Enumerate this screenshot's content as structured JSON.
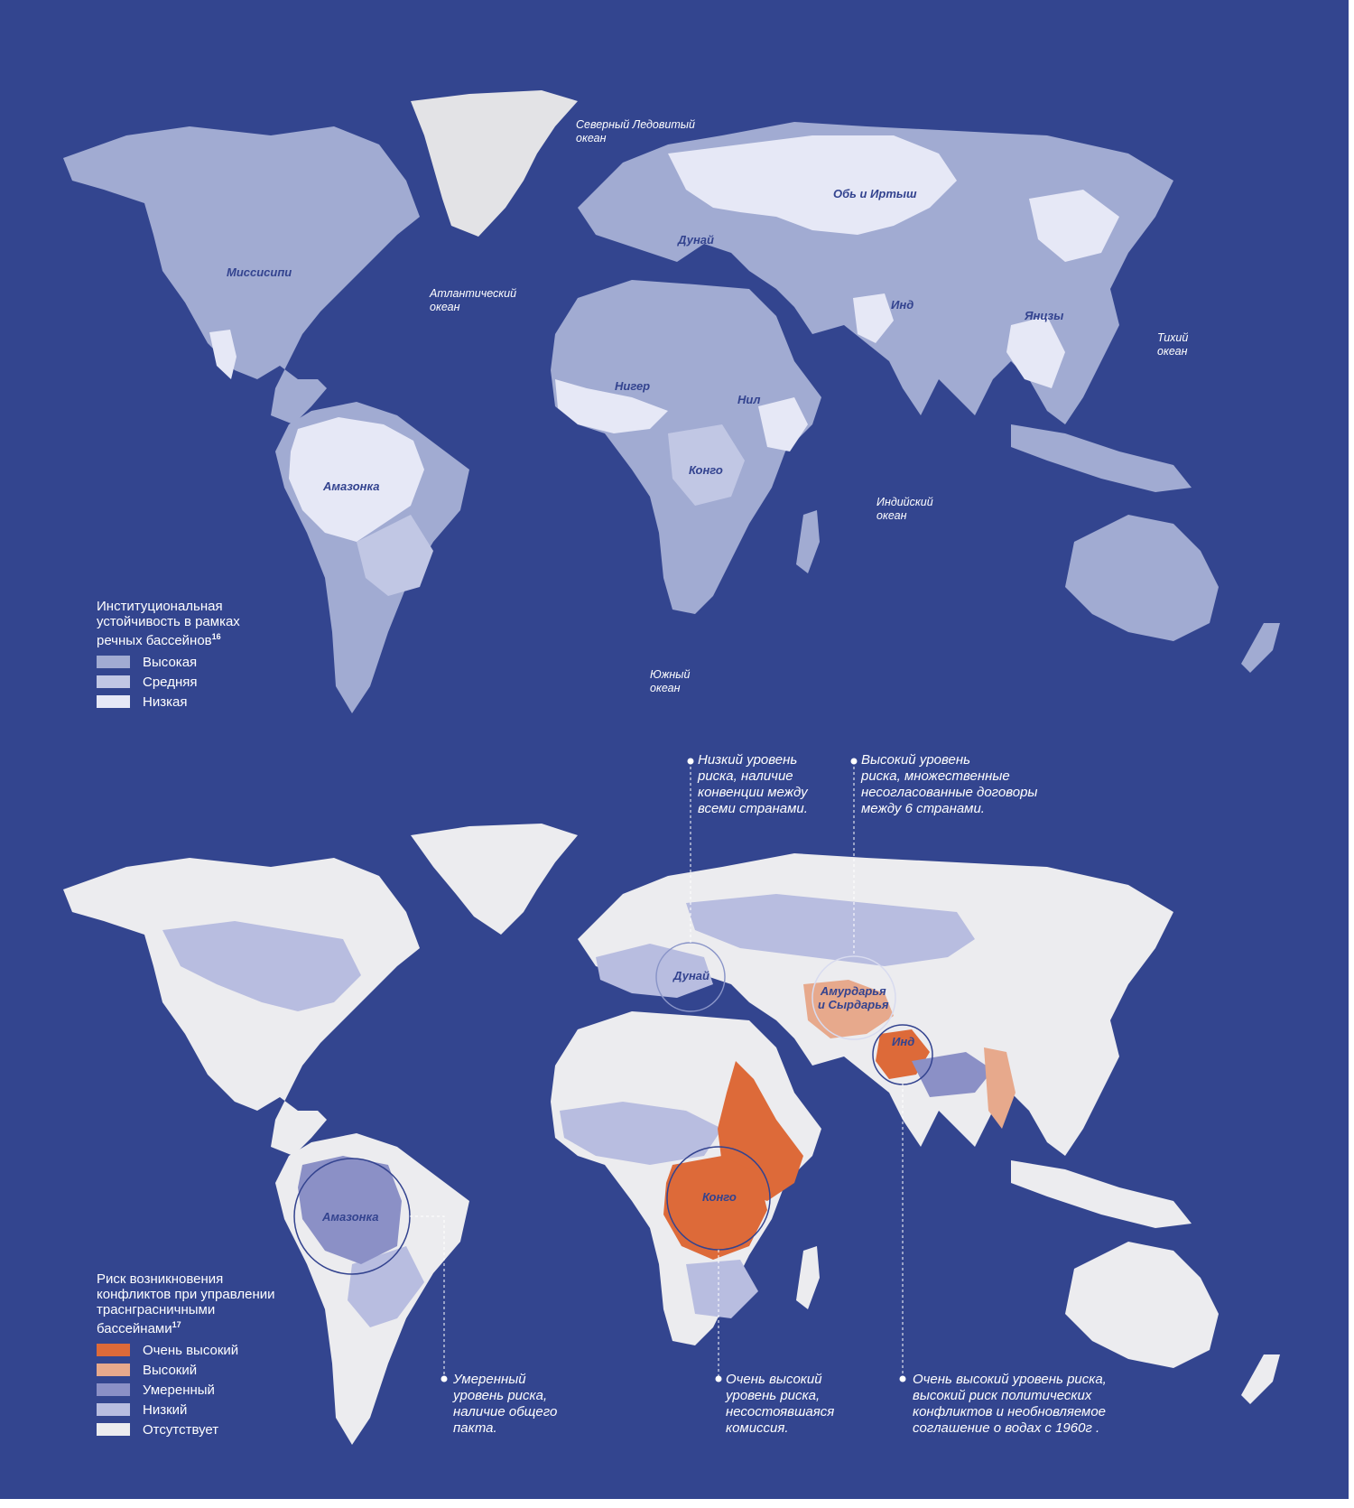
{
  "colors": {
    "background": "#33458f",
    "frame": "#d9dce8",
    "greenland": "#e3e3e6",
    "inst_high": "#a1abd2",
    "inst_mid": "#c1c7e4",
    "inst_low": "#e6e8f6",
    "risk_very_high": "#dd6a39",
    "risk_high": "#e7a98c",
    "risk_moderate": "#8b90c6",
    "risk_low": "#b8bde0",
    "risk_none": "#ececef",
    "label": "#33438f"
  },
  "map_top": {
    "rivers": [
      "Миссисипи",
      "Амазонка",
      "Нигер",
      "Нил",
      "Конго",
      "Дунай",
      "Обь и Иртыш",
      "Инд",
      "Янцзы"
    ],
    "oceans": [
      "Северный Ледовитый\nокеан",
      "Атлантический\nокеан",
      "Тихий\nокеан",
      "Индийский\nокеан",
      "Южный\nокеан"
    ],
    "legend": {
      "title": "Институциональная\nустойчивость в рамках\nречных бассейнов",
      "footnote": "16",
      "items": [
        {
          "label": "Высокая",
          "color": "#a1abd2"
        },
        {
          "label": "Средняя",
          "color": "#c1c7e4"
        },
        {
          "label": "Низкая",
          "color": "#e6e8f6"
        }
      ]
    }
  },
  "map_bottom": {
    "basins": [
      "Дунай",
      "Амурдарья\nи Сырдарья",
      "Инд",
      "Конго",
      "Амазонка"
    ],
    "annotations": [
      "Низкий уровень\nриска, наличие\nконвенции между\nвсеми странами.",
      " Высокий уровень\nриска, множественные\nнесогласованные договоры\nмежду 6 странами.",
      "Умеренный\nуровень риска,\nналичие общего\nпакта.",
      "Очень высокий\nуровень риска,\nнесостоявшаяся\nкомиссия.",
      "Очень высокий уровень риска,\nвысокий риск политических\nконфликтов и необновляемое\nсоглашение о водах с 1960г ."
    ],
    "legend": {
      "title": "Риск возникновения\nконфликтов при управлении\nтраснграсничными\nбассейнами",
      "footnote": "17",
      "items": [
        {
          "label": "Очень высокий",
          "color": "#dd6a39"
        },
        {
          "label": "Высокий",
          "color": "#e7a98c"
        },
        {
          "label": "Умеренный",
          "color": "#8b90c6"
        },
        {
          "label": "Низкий",
          "color": "#b8bde0"
        },
        {
          "label": "Отсутствует",
          "color": "#ececef"
        }
      ]
    }
  }
}
